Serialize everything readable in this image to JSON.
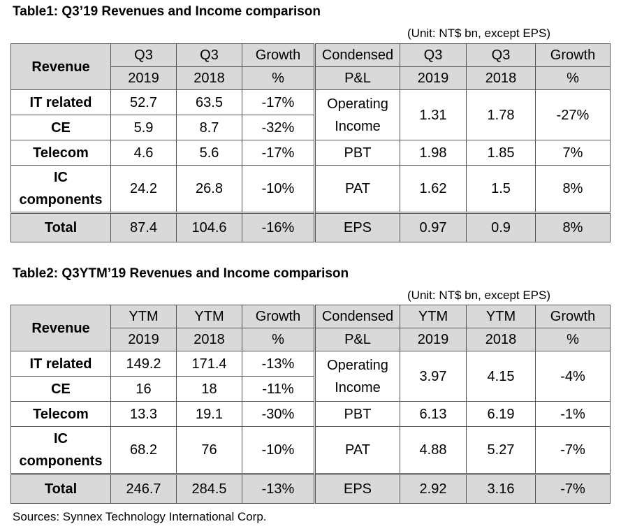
{
  "table1": {
    "title": "Table1: Q3’19 Revenues and Income comparison",
    "unit": "(Unit: NT$ bn, except EPS)",
    "header": {
      "revenue": "Revenue",
      "col1_top": "Q3",
      "col1_bot": "2019",
      "col2_top": "Q3",
      "col2_bot": "2018",
      "col3_top": "Growth",
      "col3_bot": "%",
      "pl_top": "Condensed",
      "pl_bot": "P&L",
      "col5_top": "Q3",
      "col5_bot": "2019",
      "col6_top": "Q3",
      "col6_bot": "2018",
      "col7_top": "Growth",
      "col7_bot": "%"
    },
    "rows": [
      {
        "name": "IT related",
        "v2019": "52.7",
        "v2018": "63.5",
        "growth": "-17%"
      },
      {
        "name": "CE",
        "v2019": "5.9",
        "v2018": "8.7",
        "growth": "-32%"
      },
      {
        "name": "Telecom",
        "v2019": "4.6",
        "v2018": "5.6",
        "growth": "-17%"
      },
      {
        "name_l1": "IC",
        "name_l2": "components",
        "v2019": "24.2",
        "v2018": "26.8",
        "growth": "-10%"
      }
    ],
    "total": {
      "name": "Total",
      "v2019": "87.4",
      "v2018": "104.6",
      "growth": "-16%"
    },
    "pl": [
      {
        "name_l1": "Operating",
        "name_l2": "Income",
        "v2019": "1.31",
        "v2018": "1.78",
        "growth": "-27%"
      },
      {
        "name": "PBT",
        "v2019": "1.98",
        "v2018": "1.85",
        "growth": "7%"
      },
      {
        "name": "PAT",
        "v2019": "1.62",
        "v2018": "1.5",
        "growth": "8%"
      },
      {
        "name": "EPS",
        "v2019": "0.97",
        "v2018": "0.9",
        "growth": "8%"
      }
    ]
  },
  "table2": {
    "title": "Table2: Q3YTM’19 Revenues and Income comparison",
    "unit": "(Unit: NT$ bn, except EPS)",
    "header": {
      "revenue": "Revenue",
      "col1_top": "YTM",
      "col1_bot": "2019",
      "col2_top": "YTM",
      "col2_bot": "2018",
      "col3_top": "Growth",
      "col3_bot": "%",
      "pl_top": "Condensed",
      "pl_bot": "P&L",
      "col5_top": "YTM",
      "col5_bot": "2019",
      "col6_top": "YTM",
      "col6_bot": "2018",
      "col7_top": "Growth",
      "col7_bot": "%"
    },
    "rows": [
      {
        "name": "IT related",
        "v2019": "149.2",
        "v2018": "171.4",
        "growth": "-13%"
      },
      {
        "name": "CE",
        "v2019": "16",
        "v2018": "18",
        "growth": "-11%"
      },
      {
        "name": "Telecom",
        "v2019": "13.3",
        "v2018": "19.1",
        "growth": "-30%"
      },
      {
        "name_l1": "IC",
        "name_l2": "components",
        "v2019": "68.2",
        "v2018": "76",
        "growth": "-10%"
      }
    ],
    "total": {
      "name": "Total",
      "v2019": "246.7",
      "v2018": "284.5",
      "growth": "-13%"
    },
    "pl": [
      {
        "name_l1": "Operating",
        "name_l2": "Income",
        "v2019": "3.97",
        "v2018": "4.15",
        "growth": "-4%"
      },
      {
        "name": "PBT",
        "v2019": "6.13",
        "v2018": "6.19",
        "growth": "-1%"
      },
      {
        "name": "PAT",
        "v2019": "4.88",
        "v2018": "5.27",
        "growth": "-7%"
      },
      {
        "name": "EPS",
        "v2019": "2.92",
        "v2018": "3.16",
        "growth": "-7%"
      }
    ]
  },
  "source": "Sources: Synnex Technology International Corp."
}
